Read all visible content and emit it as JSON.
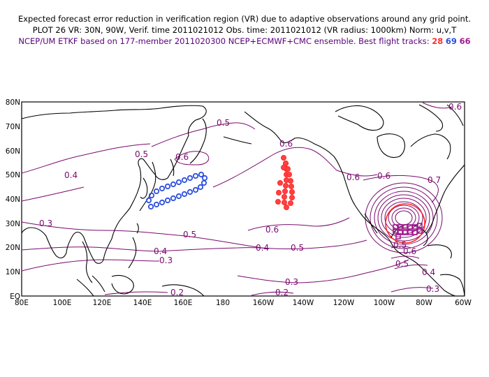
{
  "header": {
    "line1": "Expected forecast error reduction in verification region (VR) due to adaptive observations around any grid point.",
    "line2": "PLOT 26 VR: 30N, 90W, Verif. time 2011021012 Obs. time: 2011021012 (VR radius: 1000km) Norm: u,v,T",
    "line3_prefix": "NCEP/UM ETKF based on 177-member 2011020300 NCEP+ECMWF+CMC ensemble. Best flight tracks:",
    "track_28": "28",
    "track_69": "69",
    "track_66": "66"
  },
  "axes": {
    "y_ticks": [
      "80N",
      "70N",
      "60N",
      "50N",
      "40N",
      "30N",
      "20N",
      "10N",
      "EQ"
    ],
    "x_ticks": [
      "80E",
      "100E",
      "120E",
      "140E",
      "160E",
      "180",
      "160W",
      "140W",
      "120W",
      "100W",
      "80W",
      "60W"
    ]
  },
  "contour_labels": [
    "0.6",
    "0.5",
    "0.5",
    "0.6",
    "0.4",
    "0.6",
    "0.6",
    "0.6",
    "0.7",
    "0.6",
    "0.5",
    "0.5",
    "0.4",
    "0.4",
    "0.5",
    "0.3",
    "0.3",
    "0.3",
    "0.2",
    "0.2",
    "0.3",
    "0.4",
    "0.5",
    "0.6"
  ],
  "colors": {
    "contour": "#7a0a6e",
    "coast": "#000000",
    "track_28": "#ff3030",
    "track_69": "#2d4fe0",
    "track_66": "#a01a8c",
    "vr_circle": "#ff2a2a"
  }
}
